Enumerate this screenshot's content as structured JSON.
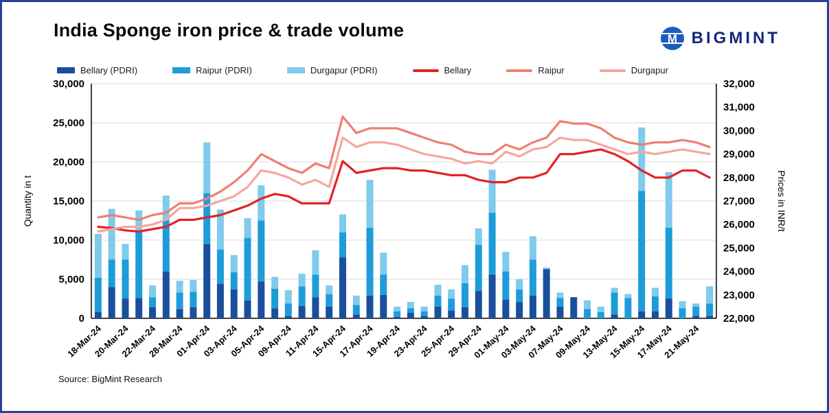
{
  "page": {
    "title": "India Sponge iron price & trade volume",
    "source": "Source: BigMint Research",
    "brand": "BIGMINT"
  },
  "legend": [
    {
      "label": "Bellary (PDRI)",
      "type": "bar",
      "color": "#1a4f9c"
    },
    {
      "label": "Raipur (PDRI)",
      "type": "bar",
      "color": "#1e9cd9"
    },
    {
      "label": "Durgapur (PDRI)",
      "type": "bar",
      "color": "#7fcbeb"
    },
    {
      "label": "Bellary",
      "type": "line",
      "color": "#e22128"
    },
    {
      "label": "Raipur",
      "type": "line",
      "color": "#ef7e71"
    },
    {
      "label": "Durgapur",
      "type": "line",
      "color": "#f4a79c"
    }
  ],
  "chart_data": {
    "type": "bar+line",
    "title": "India Sponge iron price & trade volume",
    "ylabel_left": "Quantity in t",
    "ylabel_right": "Prices in INR/t",
    "ylim_left": [
      0,
      30000
    ],
    "ylim_right": [
      22000,
      32000
    ],
    "yticks_left": [
      0,
      5000,
      10000,
      15000,
      20000,
      25000,
      30000
    ],
    "yticks_right": [
      22000,
      23000,
      24000,
      25000,
      26000,
      27000,
      28000,
      29000,
      30000,
      31000,
      32000
    ],
    "grid": true,
    "legend_position": "top",
    "x_tick_labels": [
      "18-Mar-24",
      "20-Mar-24",
      "22-Mar-24",
      "28-Mar-24",
      "01-Apr-24",
      "03-Apr-24",
      "05-Apr-24",
      "09-Apr-24",
      "11-Apr-24",
      "15-Apr-24",
      "17-Apr-24",
      "19-Apr-24",
      "23-Apr-24",
      "25-Apr-24",
      "29-Apr-24",
      "01-May-24",
      "03-May-24",
      "07-May-24",
      "09-May-24",
      "13-May-24",
      "15-May-24",
      "17-May-24",
      "21-May-24"
    ],
    "tick_every": 2,
    "bar_series": [
      {
        "name": "Bellary (PDRI)",
        "color": "#1a4f9c",
        "values": [
          800,
          4000,
          2500,
          2600,
          1400,
          6000,
          1200,
          1400,
          9500,
          4400,
          3700,
          2300,
          4700,
          1300,
          300,
          1600,
          2700,
          1500,
          7800,
          500,
          2900,
          3000,
          200,
          700,
          300,
          1500,
          1000,
          1400,
          3500,
          5600,
          2400,
          2100,
          2900,
          6300,
          1500,
          2700,
          0,
          0,
          500,
          0,
          900,
          900,
          2500,
          0,
          300,
          300
        ]
      },
      {
        "name": "Raipur (PDRI)",
        "color": "#1e9cd9",
        "values": [
          4400,
          3500,
          5000,
          8400,
          1300,
          6500,
          2100,
          2000,
          6500,
          4400,
          2200,
          8000,
          7800,
          2500,
          1600,
          2500,
          2900,
          1600,
          3200,
          1200,
          8700,
          2600,
          700,
          600,
          600,
          1400,
          1500,
          3100,
          5900,
          7900,
          3600,
          1600,
          4600,
          0,
          1100,
          0,
          1200,
          800,
          2800,
          2600,
          15400,
          1900,
          9100,
          1300,
          1200,
          1600
        ]
      },
      {
        "name": "Durgapur (PDRI)",
        "color": "#7fcbeb",
        "values": [
          5600,
          6500,
          2000,
          2800,
          1500,
          3200,
          1500,
          1500,
          6500,
          5100,
          2200,
          2500,
          4500,
          1500,
          1700,
          1600,
          3100,
          1100,
          2300,
          1200,
          6100,
          2800,
          600,
          800,
          600,
          1400,
          1200,
          2300,
          2100,
          5500,
          2500,
          1300,
          3000,
          200,
          700,
          0,
          1100,
          700,
          600,
          500,
          8100,
          1100,
          7100,
          900,
          400,
          2200
        ]
      }
    ],
    "line_series": [
      {
        "name": "Bellary",
        "color": "#e22128",
        "values": [
          25900,
          25850,
          25750,
          25700,
          25800,
          25900,
          26200,
          26200,
          26300,
          26400,
          26600,
          26800,
          27100,
          27300,
          27200,
          26900,
          26900,
          26900,
          28700,
          28200,
          28300,
          28400,
          28400,
          28300,
          28300,
          28200,
          28100,
          28100,
          27900,
          27800,
          27800,
          28000,
          28000,
          28200,
          29000,
          29000,
          29100,
          29200,
          29000,
          28700,
          28300,
          28000,
          28000,
          28300,
          28300,
          28000
        ]
      },
      {
        "name": "Raipur",
        "color": "#ef7e71",
        "values": [
          26300,
          26400,
          26300,
          26200,
          26400,
          26500,
          26900,
          26900,
          27100,
          27400,
          27800,
          28300,
          29000,
          28700,
          28400,
          28200,
          28600,
          28400,
          30600,
          29900,
          30100,
          30100,
          30100,
          29900,
          29700,
          29500,
          29400,
          29100,
          29000,
          29000,
          29400,
          29200,
          29500,
          29700,
          30400,
          30300,
          30300,
          30100,
          29700,
          29500,
          29400,
          29500,
          29500,
          29600,
          29500,
          29300
        ]
      },
      {
        "name": "Durgapur",
        "color": "#f4a79c",
        "values": [
          25700,
          25800,
          25900,
          25900,
          26000,
          26200,
          26700,
          26700,
          26800,
          27000,
          27200,
          27600,
          28300,
          28200,
          28000,
          27700,
          27900,
          27600,
          29700,
          29300,
          29500,
          29500,
          29400,
          29200,
          29000,
          28900,
          28800,
          28600,
          28700,
          28600,
          29100,
          28900,
          29200,
          29300,
          29700,
          29600,
          29600,
          29400,
          29200,
          29000,
          29100,
          29000,
          29100,
          29200,
          29100,
          29000
        ]
      }
    ]
  }
}
